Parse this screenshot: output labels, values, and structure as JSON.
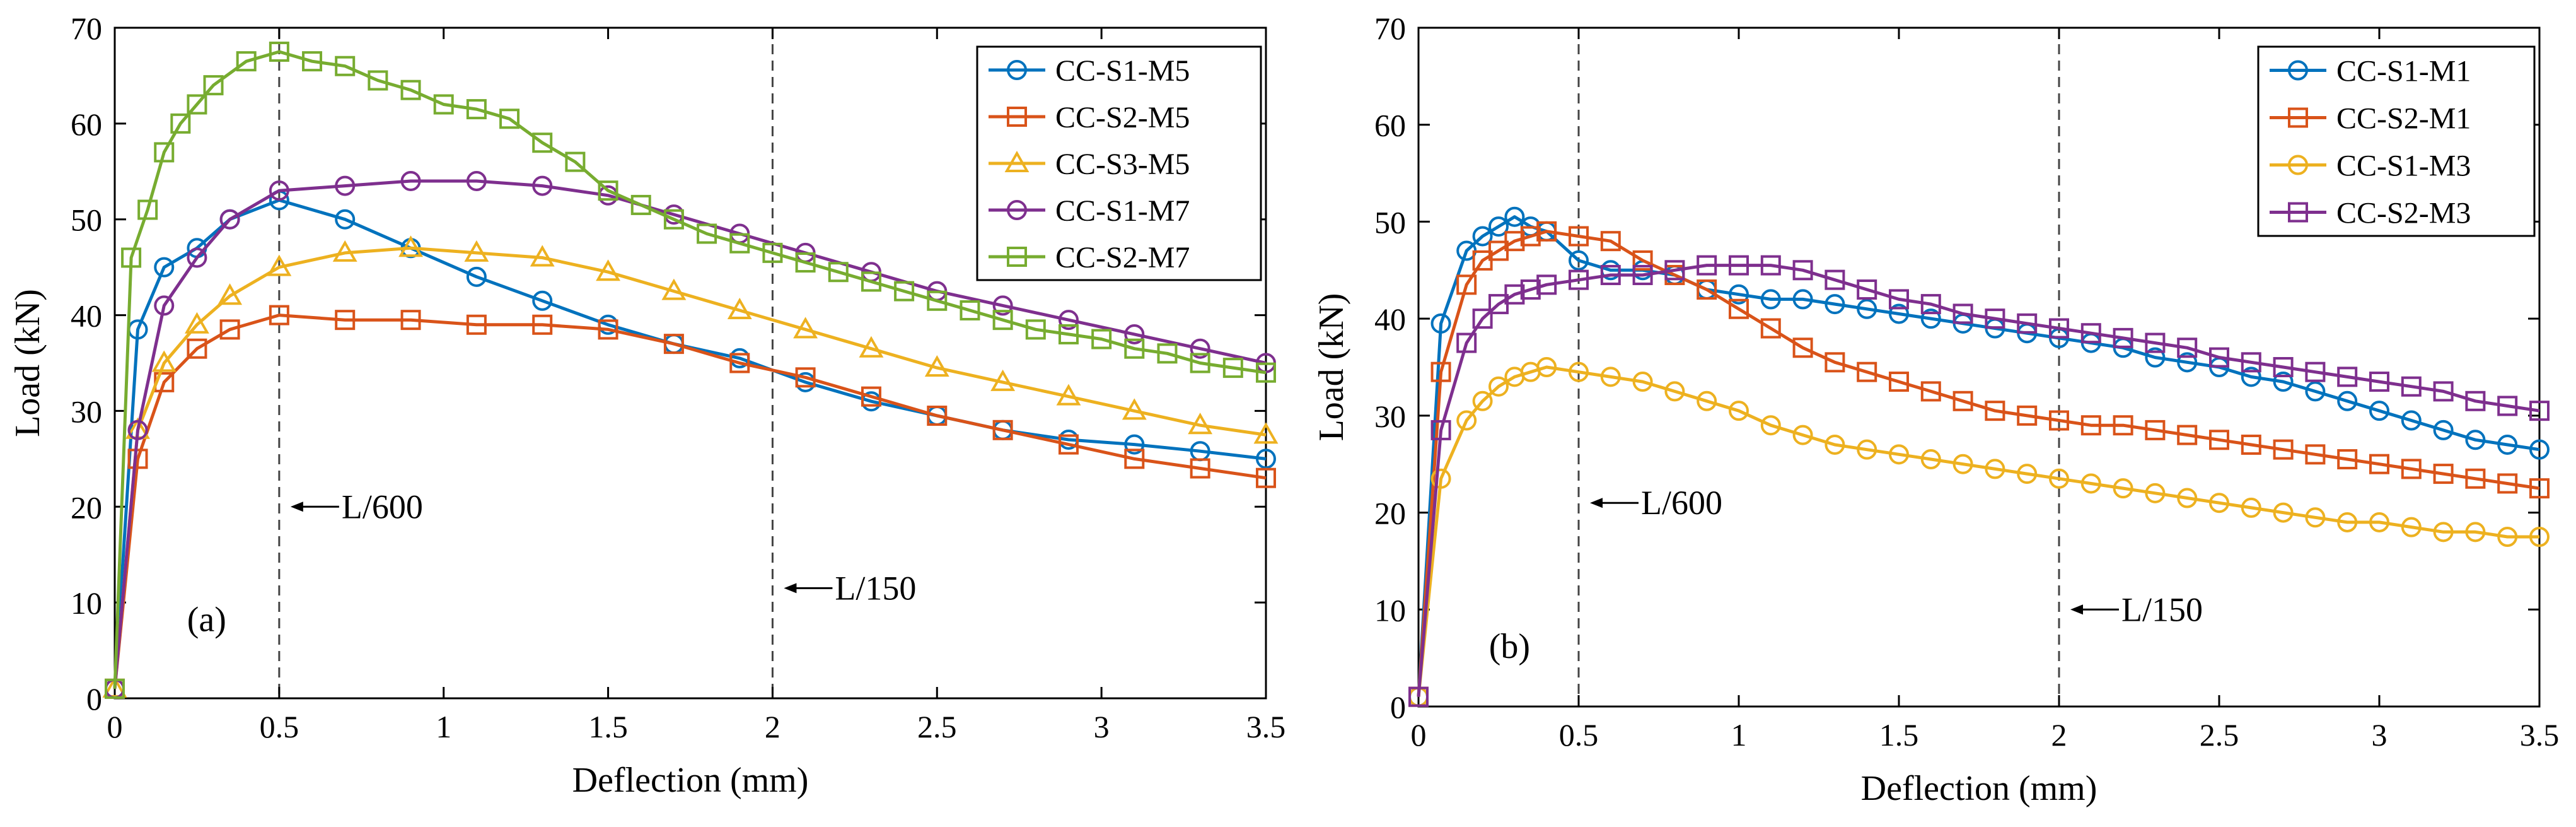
{
  "chart_data": [
    {
      "panel": "(a)",
      "type": "line",
      "xlabel": "Deflection (mm)",
      "ylabel": "Load (kN)",
      "xlim": [
        0,
        3.5
      ],
      "ylim": [
        0,
        70
      ],
      "xticks": [
        0,
        0.5,
        1,
        1.5,
        2,
        2.5,
        3,
        3.5
      ],
      "xtick_labels": [
        "0",
        "0.5",
        "1",
        "1.5",
        "2",
        "2.5",
        "3",
        "3.5"
      ],
      "yticks": [
        0,
        10,
        20,
        30,
        40,
        50,
        60,
        70
      ],
      "ytick_labels": [
        "0",
        "10",
        "20",
        "30",
        "40",
        "50",
        "60",
        "70"
      ],
      "grid": false,
      "legend_position": "top-right",
      "vlines": [
        {
          "x": 0.5,
          "label": "L/600",
          "label_y": 20
        },
        {
          "x": 2,
          "label": "L/150",
          "label_y": 11.5
        }
      ],
      "series": [
        {
          "name": "CC-S1-M5",
          "color": "#0072BD",
          "marker": "circle",
          "x": [
            0,
            0.07,
            0.15,
            0.25,
            0.35,
            0.5,
            0.7,
            0.9,
            1.1,
            1.3,
            1.5,
            1.7,
            1.9,
            2.1,
            2.3,
            2.5,
            2.7,
            2.9,
            3.1,
            3.3,
            3.5
          ],
          "y": [
            1,
            38.5,
            45,
            47,
            50,
            52,
            50,
            47,
            44,
            41.5,
            39,
            37,
            35.5,
            33,
            31,
            29.5,
            28,
            27,
            26.5,
            25.8,
            25
          ]
        },
        {
          "name": "CC-S2-M5",
          "color": "#D95319",
          "marker": "square",
          "x": [
            0,
            0.07,
            0.15,
            0.25,
            0.35,
            0.5,
            0.7,
            0.9,
            1.1,
            1.3,
            1.5,
            1.7,
            1.9,
            2.1,
            2.3,
            2.5,
            2.7,
            2.9,
            3.1,
            3.3,
            3.5
          ],
          "y": [
            1,
            25,
            33,
            36.5,
            38.5,
            40,
            39.5,
            39.5,
            39,
            39,
            38.5,
            37,
            35,
            33.5,
            31.5,
            29.5,
            28,
            26.5,
            25,
            24,
            23
          ]
        },
        {
          "name": "CC-S3-M5",
          "color": "#EDB120",
          "marker": "triangle",
          "x": [
            0,
            0.07,
            0.15,
            0.25,
            0.35,
            0.5,
            0.7,
            0.9,
            1.1,
            1.3,
            1.5,
            1.7,
            1.9,
            2.1,
            2.3,
            2.5,
            2.7,
            2.9,
            3.1,
            3.3,
            3.5
          ],
          "y": [
            1,
            28,
            35,
            39,
            42,
            45,
            46.5,
            47,
            46.5,
            46,
            44.5,
            42.5,
            40.5,
            38.5,
            36.5,
            34.5,
            33,
            31.5,
            30,
            28.5,
            27.5
          ]
        },
        {
          "name": "CC-S1-M7",
          "color": "#7E2F8E",
          "marker": "circle",
          "x": [
            0,
            0.07,
            0.15,
            0.25,
            0.35,
            0.5,
            0.7,
            0.9,
            1.1,
            1.3,
            1.5,
            1.7,
            1.9,
            2.1,
            2.3,
            2.5,
            2.7,
            2.9,
            3.1,
            3.3,
            3.5
          ],
          "y": [
            1,
            28,
            41,
            46,
            50,
            53,
            53.5,
            54,
            54,
            53.5,
            52.5,
            50.5,
            48.5,
            46.5,
            44.5,
            42.5,
            41,
            39.5,
            38,
            36.5,
            35
          ]
        },
        {
          "name": "CC-S2-M7",
          "color": "#77AC30",
          "marker": "square",
          "x": [
            0,
            0.05,
            0.1,
            0.15,
            0.2,
            0.25,
            0.3,
            0.4,
            0.5,
            0.6,
            0.7,
            0.8,
            0.9,
            1.0,
            1.1,
            1.2,
            1.3,
            1.4,
            1.5,
            1.6,
            1.7,
            1.8,
            1.9,
            2.0,
            2.1,
            2.2,
            2.3,
            2.4,
            2.5,
            2.6,
            2.7,
            2.8,
            2.9,
            3.0,
            3.1,
            3.2,
            3.3,
            3.4,
            3.5
          ],
          "y": [
            1,
            46,
            51,
            57,
            60,
            62,
            64,
            66.5,
            67.5,
            66.5,
            66,
            64.5,
            63.5,
            62,
            61.5,
            60.5,
            58,
            56,
            53,
            51.5,
            50,
            48.5,
            47.5,
            46.5,
            45.5,
            44.5,
            43.5,
            42.5,
            41.5,
            40.5,
            39.5,
            38.5,
            38,
            37.5,
            36.5,
            36,
            35,
            34.5,
            34
          ]
        }
      ]
    },
    {
      "panel": "(b)",
      "type": "line",
      "xlabel": "Deflection (mm)",
      "ylabel": "Load (kN)",
      "xlim": [
        0,
        3.5
      ],
      "ylim": [
        0,
        70
      ],
      "xticks": [
        0,
        0.5,
        1,
        1.5,
        2,
        2.5,
        3,
        3.5
      ],
      "xtick_labels": [
        "0",
        "0.5",
        "1",
        "1.5",
        "2",
        "2.5",
        "3",
        "3.5"
      ],
      "yticks": [
        0,
        10,
        20,
        30,
        40,
        50,
        60,
        70
      ],
      "ytick_labels": [
        "0",
        "10",
        "20",
        "30",
        "40",
        "50",
        "60",
        "70"
      ],
      "grid": false,
      "legend_position": "top-right",
      "vlines": [
        {
          "x": 0.5,
          "label": "L/600",
          "label_y": 21
        },
        {
          "x": 2,
          "label": "L/150",
          "label_y": 10
        }
      ],
      "series": [
        {
          "name": "CC-S1-M1",
          "color": "#0072BD",
          "marker": "circle",
          "x": [
            0,
            0.07,
            0.15,
            0.2,
            0.25,
            0.3,
            0.35,
            0.4,
            0.5,
            0.6,
            0.7,
            0.8,
            0.9,
            1.0,
            1.1,
            1.2,
            1.3,
            1.4,
            1.5,
            1.6,
            1.7,
            1.8,
            1.9,
            2.0,
            2.1,
            2.2,
            2.3,
            2.4,
            2.5,
            2.6,
            2.7,
            2.8,
            2.9,
            3.0,
            3.1,
            3.2,
            3.3,
            3.4,
            3.5
          ],
          "y": [
            1,
            39.5,
            47,
            48.5,
            49.5,
            50.5,
            49.5,
            49,
            46,
            45,
            45,
            44.5,
            43,
            42.5,
            42,
            42,
            41.5,
            41,
            40.5,
            40,
            39.5,
            39,
            38.5,
            38,
            37.5,
            37,
            36,
            35.5,
            35,
            34,
            33.5,
            32.5,
            31.5,
            30.5,
            29.5,
            28.5,
            27.5,
            27,
            26.5
          ]
        },
        {
          "name": "CC-S2-M1",
          "color": "#D95319",
          "marker": "square",
          "x": [
            0,
            0.07,
            0.15,
            0.2,
            0.25,
            0.3,
            0.35,
            0.4,
            0.5,
            0.6,
            0.7,
            0.8,
            0.9,
            1.0,
            1.1,
            1.2,
            1.3,
            1.4,
            1.5,
            1.6,
            1.7,
            1.8,
            1.9,
            2.0,
            2.1,
            2.2,
            2.3,
            2.4,
            2.5,
            2.6,
            2.7,
            2.8,
            2.9,
            3.0,
            3.1,
            3.2,
            3.3,
            3.4,
            3.5
          ],
          "y": [
            1,
            34.5,
            43.5,
            46,
            47,
            48,
            48.5,
            49,
            48.5,
            48,
            46,
            44.5,
            43,
            41,
            39,
            37,
            35.5,
            34.5,
            33.5,
            32.5,
            31.5,
            30.5,
            30,
            29.5,
            29,
            29,
            28.5,
            28,
            27.5,
            27,
            26.5,
            26,
            25.5,
            25,
            24.5,
            24,
            23.5,
            23,
            22.5
          ]
        },
        {
          "name": "CC-S1-M3",
          "color": "#EDB120",
          "marker": "circle",
          "x": [
            0,
            0.07,
            0.15,
            0.2,
            0.25,
            0.3,
            0.35,
            0.4,
            0.5,
            0.6,
            0.7,
            0.8,
            0.9,
            1.0,
            1.1,
            1.2,
            1.3,
            1.4,
            1.5,
            1.6,
            1.7,
            1.8,
            1.9,
            2.0,
            2.1,
            2.2,
            2.3,
            2.4,
            2.5,
            2.6,
            2.7,
            2.8,
            2.9,
            3.0,
            3.1,
            3.2,
            3.3,
            3.4,
            3.5
          ],
          "y": [
            1,
            23.5,
            29.5,
            31.5,
            33,
            34,
            34.5,
            35,
            34.5,
            34,
            33.5,
            32.5,
            31.5,
            30.5,
            29,
            28,
            27,
            26.5,
            26,
            25.5,
            25,
            24.5,
            24,
            23.5,
            23,
            22.5,
            22,
            21.5,
            21,
            20.5,
            20,
            19.5,
            19,
            19,
            18.5,
            18,
            18,
            17.5,
            17.5
          ]
        },
        {
          "name": "CC-S2-M3",
          "color": "#7E2F8E",
          "marker": "square",
          "x": [
            0,
            0.07,
            0.15,
            0.2,
            0.25,
            0.3,
            0.35,
            0.4,
            0.5,
            0.6,
            0.7,
            0.8,
            0.9,
            1.0,
            1.1,
            1.2,
            1.3,
            1.4,
            1.5,
            1.6,
            1.7,
            1.8,
            1.9,
            2.0,
            2.1,
            2.2,
            2.3,
            2.4,
            2.5,
            2.6,
            2.7,
            2.8,
            2.9,
            3.0,
            3.1,
            3.2,
            3.3,
            3.4,
            3.5
          ],
          "y": [
            1,
            28.5,
            37.5,
            40,
            41.5,
            42.5,
            43,
            43.5,
            44,
            44.5,
            44.5,
            45,
            45.5,
            45.5,
            45.5,
            45,
            44,
            43,
            42,
            41.5,
            40.5,
            40,
            39.5,
            39,
            38.5,
            38,
            37.5,
            37,
            36,
            35.5,
            35,
            34.5,
            34,
            33.5,
            33,
            32.5,
            31.5,
            31,
            30.5
          ]
        }
      ]
    }
  ]
}
